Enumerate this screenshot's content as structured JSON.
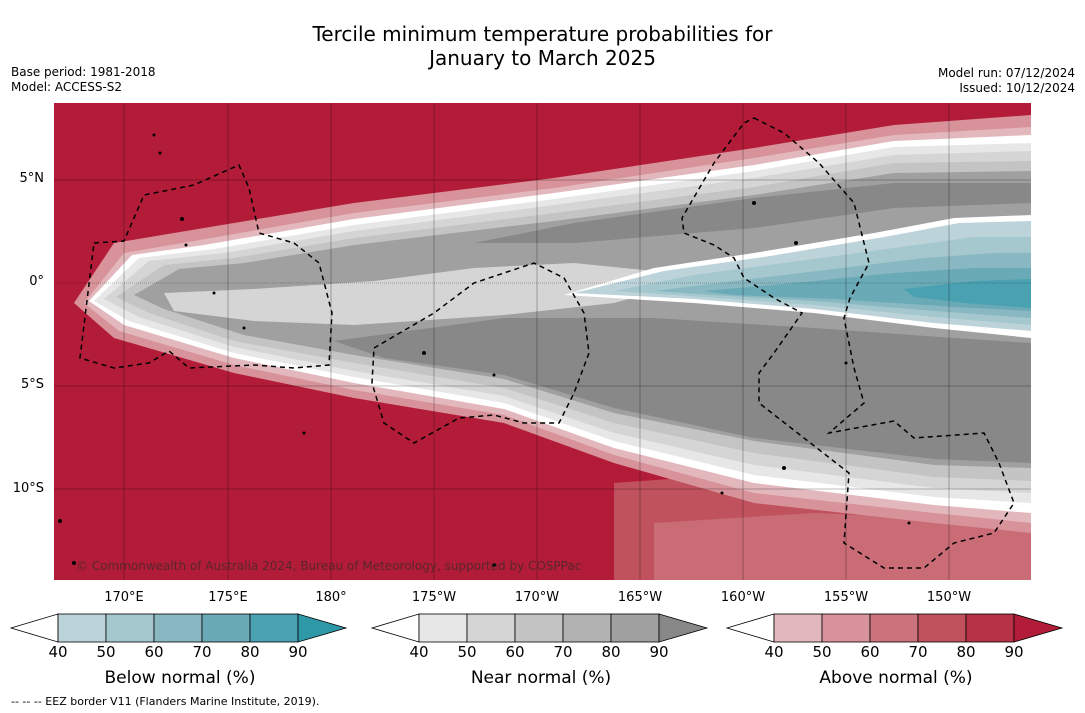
{
  "title_line1": "Tercile minimum temperature probabilities for",
  "title_line2": "January to March 2025",
  "base_period": "Base period: 1981-2018",
  "model": "Model: ACCESS-S2",
  "model_run": "Model run: 07/12/2024",
  "issued": "Issued: 10/12/2024",
  "lat_labels": [
    "5°N",
    "0°",
    "5°S",
    "10°S"
  ],
  "lon_labels": [
    "170°E",
    "175°E",
    "180°",
    "175°W",
    "170°W",
    "165°W",
    "160°W",
    "155°W",
    "150°W"
  ],
  "copyright": "© Commonwealth of Australia 2024, Bureau of Meteorology, supported by COSPPac",
  "colorbars": {
    "below": {
      "title": "Below normal (%)",
      "ticks": [
        "40",
        "50",
        "60",
        "70",
        "80",
        "90"
      ],
      "colors": [
        "#ffffff",
        "#bdd3da",
        "#a5c7ce",
        "#89b8c2",
        "#6aaab6",
        "#4aa1b1",
        "#2e97a8"
      ]
    },
    "near": {
      "title": "Near normal (%)",
      "ticks": [
        "40",
        "50",
        "60",
        "70",
        "80",
        "90"
      ],
      "colors": [
        "#ffffff",
        "#e7e7e7",
        "#d5d5d5",
        "#c4c4c4",
        "#b2b2b2",
        "#a0a0a0",
        "#888888"
      ]
    },
    "above": {
      "title": "Above normal (%)",
      "ticks": [
        "40",
        "50",
        "60",
        "70",
        "80",
        "90"
      ],
      "colors": [
        "#ffffff",
        "#e2b8bd",
        "#d89299",
        "#cb737c",
        "#c0525e",
        "#b83247",
        "#b31c38"
      ]
    }
  },
  "footnote": "-- -- -- EEZ border V11 (Flanders Marine Institute, 2019)."
}
